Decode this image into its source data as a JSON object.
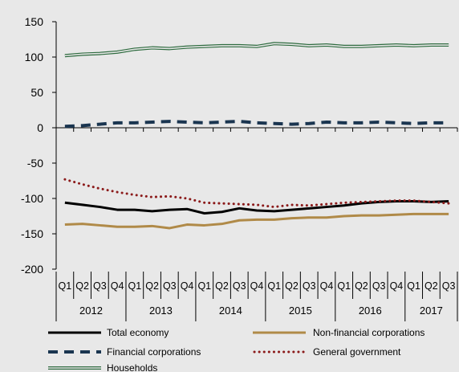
{
  "chart_data": {
    "type": "line",
    "title": "",
    "xlabel": "",
    "ylabel": "",
    "ylim": [
      -200,
      150
    ],
    "yticks": [
      150,
      100,
      50,
      0,
      -50,
      -100,
      -150,
      -200
    ],
    "quarters": [
      "Q1",
      "Q2",
      "Q3",
      "Q4",
      "Q1",
      "Q2",
      "Q3",
      "Q4",
      "Q1",
      "Q2",
      "Q3",
      "Q4",
      "Q1",
      "Q2",
      "Q3",
      "Q4",
      "Q1",
      "Q2",
      "Q3",
      "Q4",
      "Q1",
      "Q2",
      "Q3"
    ],
    "years": [
      {
        "label": "2012",
        "start": 0,
        "count": 4
      },
      {
        "label": "2013",
        "start": 4,
        "count": 4
      },
      {
        "label": "2014",
        "start": 8,
        "count": 4
      },
      {
        "label": "2015",
        "start": 12,
        "count": 4
      },
      {
        "label": "2016",
        "start": 16,
        "count": 4
      },
      {
        "label": "2017",
        "start": 20,
        "count": 3
      }
    ],
    "series": [
      {
        "name": "Total economy",
        "color": "#000000",
        "style": "solid",
        "values": [
          -106,
          -109,
          -112,
          -116,
          -116,
          -118,
          -116,
          -115,
          -121,
          -119,
          -114,
          -117,
          -118,
          -116,
          -114,
          -112,
          -110,
          -107,
          -105,
          -104,
          -104,
          -105,
          -104
        ]
      },
      {
        "name": "Non-financial corporations",
        "color": "#b08a48",
        "style": "solid",
        "values": [
          -137,
          -136,
          -138,
          -140,
          -140,
          -139,
          -142,
          -137,
          -138,
          -136,
          -131,
          -130,
          -130,
          -128,
          -127,
          -127,
          -125,
          -124,
          -124,
          -123,
          -122,
          -122,
          -122
        ]
      },
      {
        "name": "Financial corporations",
        "color": "#1a3550",
        "style": "dashed",
        "values": [
          2,
          3,
          5,
          7,
          7,
          8,
          9,
          8,
          7,
          8,
          9,
          7,
          6,
          5,
          6,
          8,
          7,
          7,
          8,
          7,
          6,
          7,
          7
        ]
      },
      {
        "name": "General government",
        "color": "#8b1a1a",
        "style": "dotted",
        "values": [
          -73,
          -80,
          -86,
          -91,
          -95,
          -98,
          -97,
          -100,
          -106,
          -107,
          -108,
          -109,
          -112,
          -109,
          -110,
          -108,
          -106,
          -105,
          -104,
          -103,
          -103,
          -105,
          -107
        ]
      },
      {
        "name": "Households",
        "color": "#2e6b3f",
        "style": "double",
        "values": [
          102,
          104,
          105,
          107,
          111,
          113,
          112,
          114,
          115,
          116,
          116,
          115,
          119,
          118,
          116,
          117,
          115,
          115,
          116,
          117,
          116,
          117,
          117
        ]
      }
    ],
    "legend": {
      "position": "bottom"
    }
  }
}
